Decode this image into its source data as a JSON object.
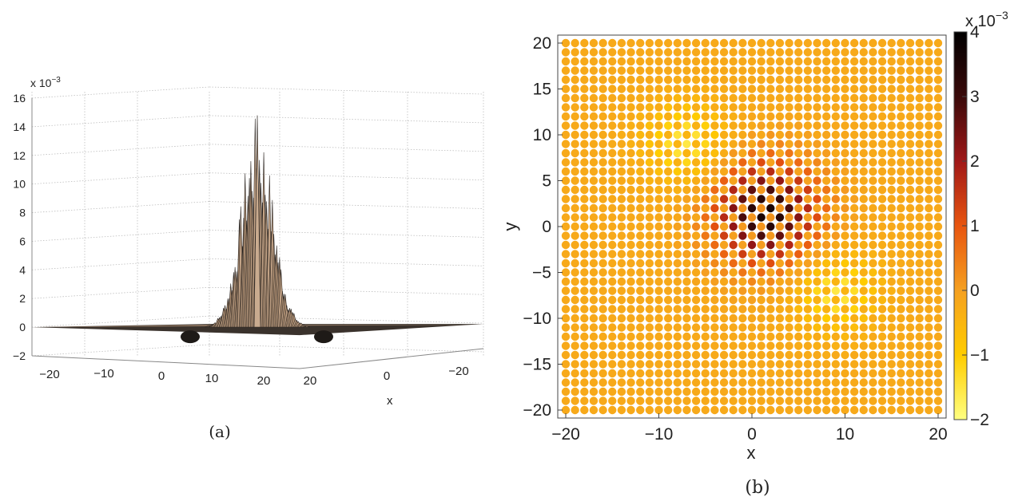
{
  "panels": {
    "a": {
      "caption": "(a)"
    },
    "b": {
      "caption": "(b)"
    }
  },
  "chart_data": [
    {
      "type": "surface",
      "panel": "a",
      "title": "",
      "xlabel": "x",
      "ylabel": "",
      "zlabel": "",
      "exponent_label": "x 10",
      "exponent_power": "−3",
      "x_ticks": [
        "−20",
        "−10",
        "0",
        "10",
        "20"
      ],
      "y_ticks": [
        "20",
        "0",
        "−20"
      ],
      "z_ticks": [
        "−2",
        "0",
        "2",
        "4",
        "6",
        "8",
        "10",
        "12",
        "14",
        "16"
      ],
      "xlim": [
        -25,
        25
      ],
      "ylim": [
        -25,
        25
      ],
      "zlim": [
        -2,
        16
      ],
      "peak_value": 14.8,
      "peak_location": [
        0,
        0
      ],
      "grid": true,
      "colors": {
        "surface": "#b9987a",
        "mesh": "#2a2420"
      }
    },
    {
      "type": "scatter-heatmap",
      "panel": "b",
      "title": "",
      "xlabel": "x",
      "ylabel": "y",
      "x_ticks": [
        "−20",
        "−10",
        "0",
        "10",
        "20"
      ],
      "y_ticks": [
        "20",
        "15",
        "10",
        "5",
        "0",
        "−5",
        "−10",
        "−15",
        "−20"
      ],
      "xlim": [
        -20,
        20
      ],
      "ylim": [
        -20,
        20
      ],
      "grid_points_per_axis": 41,
      "colorbar": {
        "exponent_label": "x 10",
        "exponent_power": "−3",
        "ticks": [
          "4",
          "3",
          "2",
          "1",
          "0",
          "−1",
          "−2"
        ],
        "range": [
          -2,
          4
        ],
        "colormap": "inverted hot",
        "stops": [
          {
            "value": -2,
            "color": "#ffff80"
          },
          {
            "value": -1,
            "color": "#ffcc00"
          },
          {
            "value": 0,
            "color": "#f5a020"
          },
          {
            "value": 1,
            "color": "#e85510"
          },
          {
            "value": 2,
            "color": "#a01818"
          },
          {
            "value": 3,
            "color": "#3a0a0a"
          },
          {
            "value": 4,
            "color": "#000000"
          }
        ]
      },
      "features": {
        "central_peak": {
          "x": 1.5,
          "y": 1.5,
          "value": 3.8
        },
        "negative_lobes": [
          {
            "x": -7,
            "y": 9,
            "value": -1.6
          },
          {
            "x": 9,
            "y": -7,
            "value": -1.6
          }
        ],
        "background_value": -0.2
      }
    }
  ]
}
